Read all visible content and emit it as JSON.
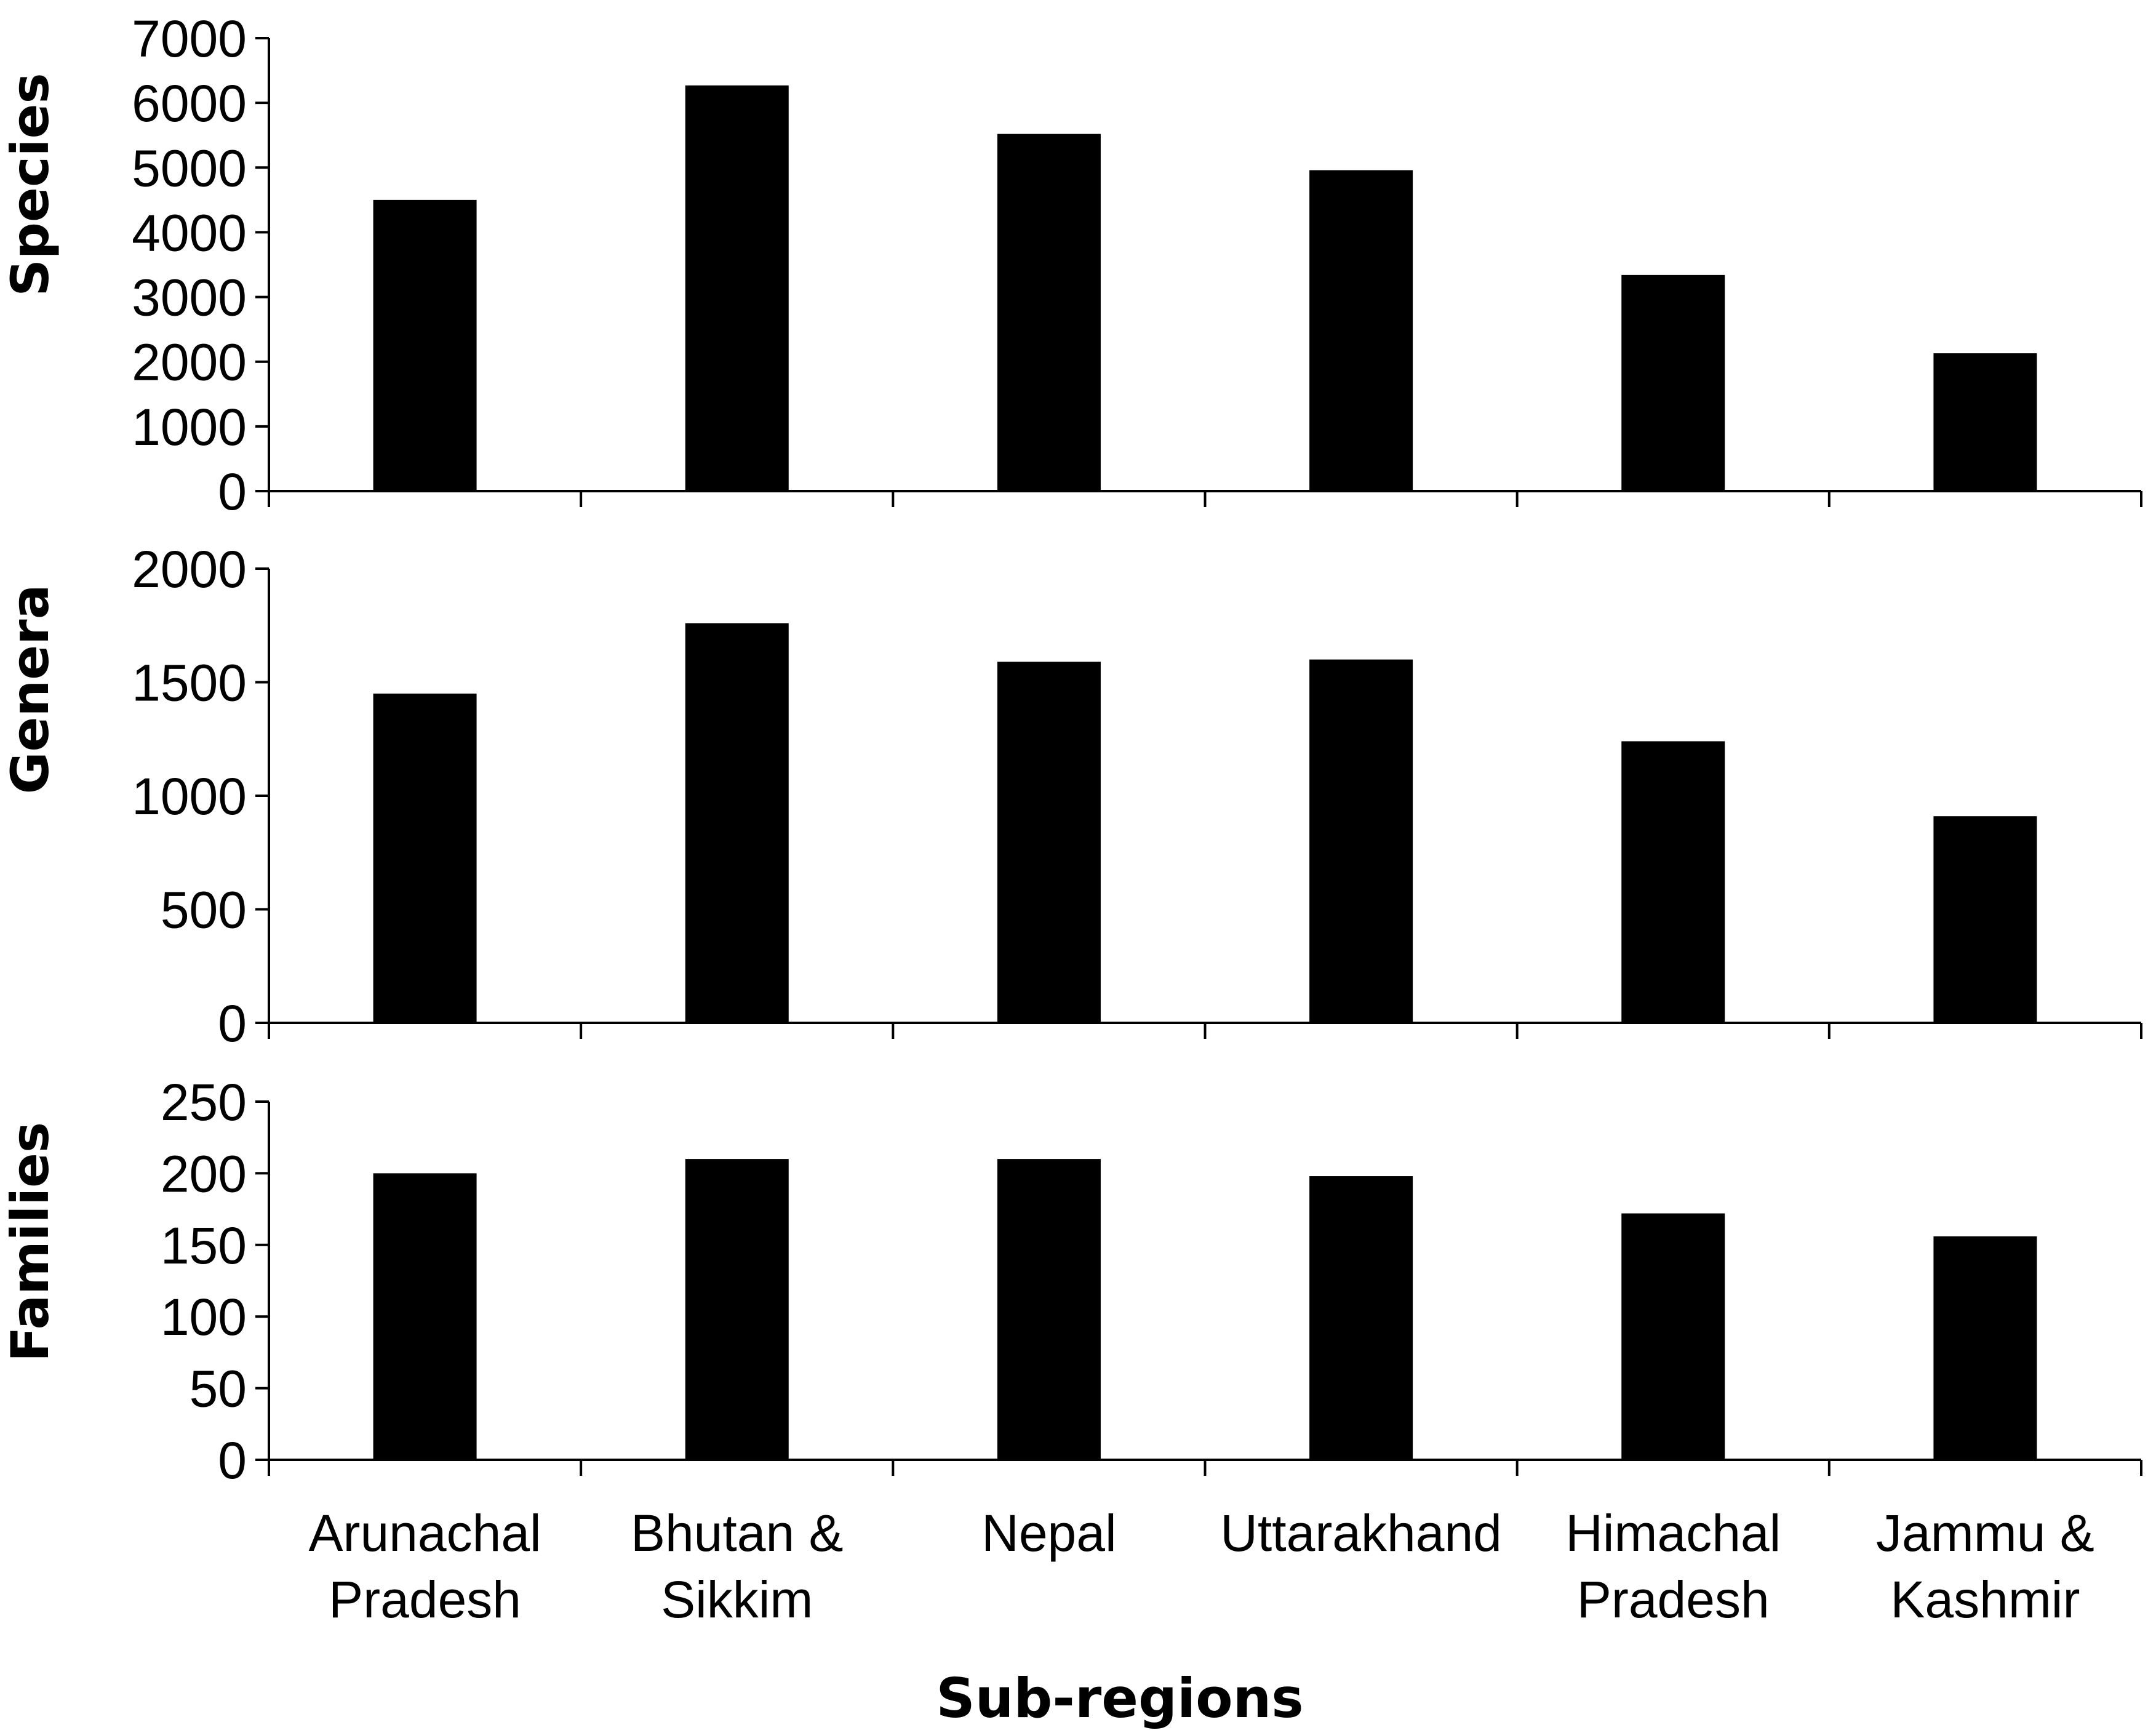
{
  "chart_data": {
    "type": "bar",
    "xlabel": "Sub-regions",
    "categories": [
      [
        "Arunachal",
        "Pradesh"
      ],
      [
        "Bhutan &",
        "Sikkim"
      ],
      [
        "Nepal"
      ],
      [
        "Uttarakhand"
      ],
      [
        "Himachal",
        "Pradesh"
      ],
      [
        "Jammu &",
        "Kashmir"
      ]
    ],
    "bar_color": "#000000",
    "grid": false,
    "panels": [
      {
        "ylabel": "Species",
        "ylim": [
          0,
          7000
        ],
        "yticks": [
          0,
          1000,
          2000,
          3000,
          4000,
          5000,
          6000,
          7000
        ],
        "values": [
          4500,
          6270,
          5520,
          4960,
          3340,
          2130
        ]
      },
      {
        "ylabel": "Genera",
        "ylim": [
          0,
          2000
        ],
        "yticks": [
          0,
          500,
          1000,
          1500,
          2000
        ],
        "values": [
          1450,
          1760,
          1590,
          1600,
          1240,
          910
        ]
      },
      {
        "ylabel": "Families",
        "ylim": [
          0,
          250
        ],
        "yticks": [
          0,
          50,
          100,
          150,
          200,
          250
        ],
        "values": [
          200,
          210,
          210,
          198,
          172,
          156
        ]
      }
    ]
  }
}
